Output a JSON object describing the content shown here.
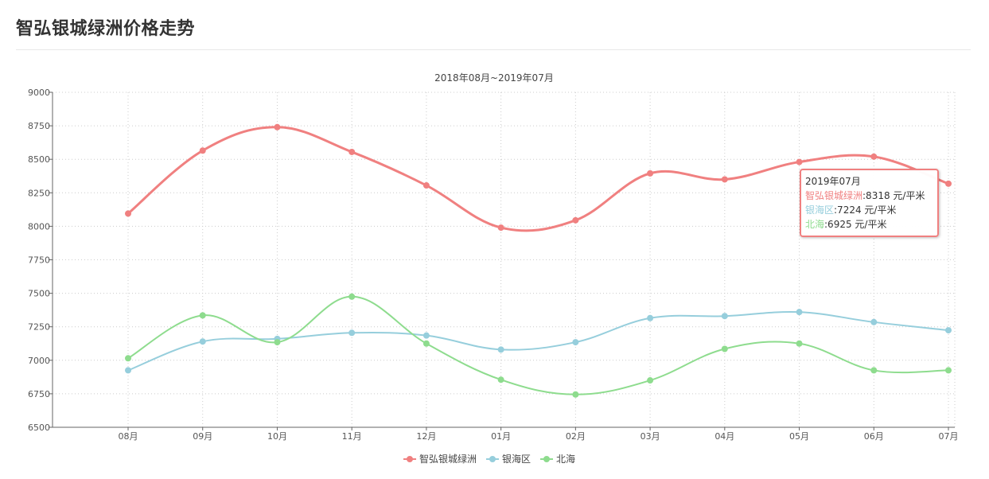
{
  "page": {
    "title": "智弘银城绿洲价格走势"
  },
  "chart_data": {
    "type": "line",
    "subtitle": "2018年08月~2019年07月",
    "categories": [
      "08月",
      "09月",
      "10月",
      "11月",
      "12月",
      "01月",
      "02月",
      "03月",
      "04月",
      "05月",
      "06月",
      "07月"
    ],
    "series": [
      {
        "name": "智弘银城绿洲",
        "color": "#f08080",
        "values": [
          8095,
          8565,
          8740,
          8555,
          8305,
          7990,
          8045,
          8395,
          8350,
          8480,
          8520,
          8318
        ]
      },
      {
        "name": "银海区",
        "color": "#96cedc",
        "values": [
          6925,
          7140,
          7160,
          7205,
          7185,
          7080,
          7135,
          7315,
          7330,
          7360,
          7285,
          7224
        ]
      },
      {
        "name": "北海",
        "color": "#8edc8e",
        "values": [
          7015,
          7335,
          7135,
          7475,
          7125,
          6855,
          6745,
          6850,
          7085,
          7125,
          6925,
          6925
        ]
      }
    ],
    "yticks": [
      6500,
      6750,
      7000,
      7250,
      7500,
      7750,
      8000,
      8250,
      8500,
      8750,
      9000
    ],
    "ylim": [
      6500,
      9000
    ],
    "grid": true,
    "legend_position": "bottom-center",
    "tooltip": {
      "title": "2019年07月",
      "rows": [
        {
          "name": "智弘银城绿洲",
          "value": ":8318 元/平米",
          "color": "#f08080"
        },
        {
          "name": "银海区",
          "value": ":7224 元/平米",
          "color": "#96cedc"
        },
        {
          "name": "北海",
          "value": ":6925 元/平米",
          "color": "#8edc8e"
        }
      ]
    }
  }
}
